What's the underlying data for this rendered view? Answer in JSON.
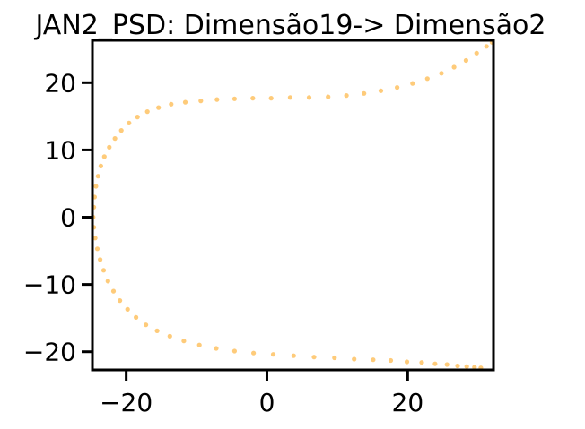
{
  "chart_data": {
    "type": "scatter",
    "title": "JAN2_PSD: Dimensão19-> Dimensão2",
    "xlabel": "",
    "ylabel": "",
    "xlim": [
      -24.8,
      32.2
    ],
    "ylim": [
      -22.7,
      26.3
    ],
    "xticks": [
      -20,
      0,
      20
    ],
    "yticks": [
      -20,
      -10,
      0,
      10,
      20
    ],
    "xtick_labels": [
      "−20",
      "0",
      "20"
    ],
    "ytick_labels": [
      "−20",
      "−10",
      "0",
      "10",
      "20"
    ],
    "grid": false,
    "legend": "none",
    "marker_color": "#FDB94D",
    "series": [
      {
        "x": [
          -24.7,
          -24.6,
          -24.5,
          -24.3,
          -24.0,
          -23.6,
          -23.1,
          -22.4,
          -21.6,
          -20.7,
          -19.6,
          -18.4,
          -17.0,
          -15.4,
          -13.6,
          -11.6,
          -9.4,
          -7.1,
          -4.6,
          -2.0,
          0.6,
          3.3,
          6.0,
          8.7,
          11.3,
          13.8,
          16.2,
          18.5,
          20.7,
          22.8,
          24.8,
          26.6,
          28.3,
          29.8,
          31.2,
          32.0,
          -24.6,
          -24.4,
          -24.1,
          -23.7,
          -23.2,
          -22.6,
          -21.8,
          -20.9,
          -19.8,
          -18.6,
          -17.2,
          -15.6,
          -13.8,
          -11.8,
          -9.6,
          -7.2,
          -4.6,
          -1.9,
          0.9,
          3.8,
          6.7,
          9.6,
          12.4,
          15.1,
          17.6,
          19.9,
          22.0,
          23.9,
          25.6,
          27.1,
          28.4,
          29.5,
          30.4
        ],
        "y": [
          0.0,
          1.5,
          3.0,
          4.6,
          6.1,
          7.6,
          9.0,
          10.4,
          11.7,
          12.9,
          14.0,
          14.9,
          15.7,
          16.3,
          16.8,
          17.1,
          17.3,
          17.5,
          17.6,
          17.7,
          17.7,
          17.8,
          17.8,
          17.9,
          18.1,
          18.4,
          18.8,
          19.3,
          19.9,
          20.6,
          21.4,
          22.3,
          23.3,
          24.4,
          25.4,
          26.0,
          -1.5,
          -3.1,
          -4.7,
          -6.3,
          -7.9,
          -9.5,
          -11.0,
          -12.4,
          -13.7,
          -14.9,
          -16.0,
          -16.9,
          -17.7,
          -18.4,
          -19.0,
          -19.5,
          -19.9,
          -20.2,
          -20.4,
          -20.6,
          -20.8,
          -20.9,
          -21.1,
          -21.2,
          -21.3,
          -21.5,
          -21.6,
          -21.8,
          -21.9,
          -22.1,
          -22.2,
          -22.3,
          -22.4
        ]
      }
    ]
  }
}
